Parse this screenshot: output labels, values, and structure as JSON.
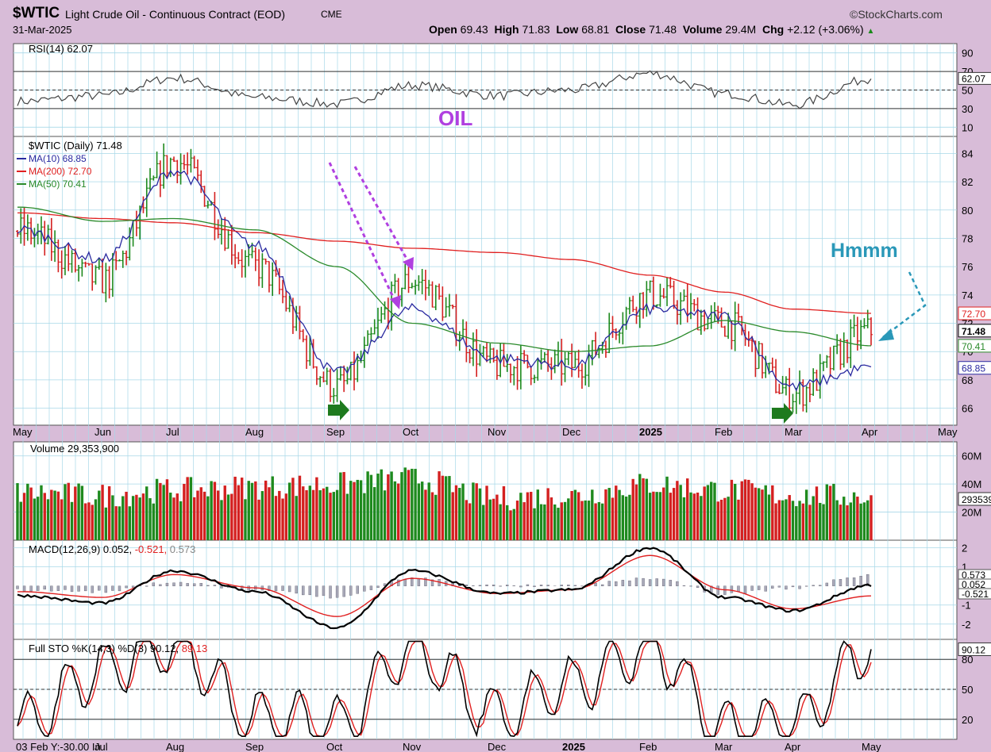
{
  "header": {
    "symbol": "$WTIC",
    "name": "Light Crude Oil - Continuous Contract (EOD)",
    "exchange": "CME",
    "watermark": "©StockCharts.com",
    "date": "31-Mar-2025",
    "open_label": "Open",
    "open": "69.43",
    "high_label": "High",
    "high": "71.83",
    "low_label": "Low",
    "low": "68.81",
    "close_label": "Close",
    "close": "71.48",
    "volume_label": "Volume",
    "volume": "29.4M",
    "chg_label": "Chg",
    "chg": "+2.12 (+3.06%)"
  },
  "colors": {
    "background": "#d8bcd8",
    "panel": "#ffffff",
    "grid": "#a8d8e8",
    "up": "#1e8a1e",
    "down": "#d42020",
    "ma10": "#2a2aa0",
    "ma200": "#e02020",
    "ma50": "#2a8a2a",
    "annotation_purple": "#b040e0",
    "annotation_teal": "#2a98b8"
  },
  "chart_data": [
    {
      "type": "line",
      "panel": "RSI",
      "legend": "RSI(14) 62.07",
      "y_ticks": [
        "90",
        "70",
        "50",
        "30",
        "10"
      ],
      "ylim": [
        0,
        100
      ],
      "last_value_label": "62.07",
      "series": [
        {
          "name": "RSI(14)",
          "x": [
            "May",
            "Jun",
            "Jul",
            "Aug",
            "Sep",
            "Oct",
            "Nov",
            "Dec",
            "2025",
            "Feb",
            "Mar",
            "Apr"
          ],
          "values": [
            38,
            44,
            63,
            42,
            35,
            55,
            44,
            50,
            68,
            46,
            34,
            62.07
          ]
        }
      ]
    },
    {
      "type": "ohlc",
      "panel": "Price",
      "legend": [
        "$WTIC (Daily) 71.48",
        "MA(10) 68.85",
        "MA(200) 72.70",
        "MA(50) 70.41"
      ],
      "y_ticks": [
        "84",
        "82",
        "80",
        "78",
        "76",
        "74",
        "72",
        "70",
        "68",
        "66"
      ],
      "ylim": [
        64.8,
        85.2
      ],
      "value_tags": [
        "72.70",
        "71.48",
        "70.41",
        "68.85"
      ],
      "x_labels": [
        "May",
        "Jun",
        "Jul",
        "Aug",
        "Sep",
        "Oct",
        "Nov",
        "Dec",
        "2025",
        "Feb",
        "Mar",
        "Apr",
        "May"
      ],
      "annotations": [
        "OIL",
        "Hmmm"
      ],
      "close_points": [
        {
          "x": "May",
          "y": 78.5
        },
        {
          "x": "Jun",
          "y": 75.0
        },
        {
          "x": "Jul",
          "y": 83.5
        },
        {
          "x": "Aug",
          "y": 76.0
        },
        {
          "x": "Sep",
          "y": 67.5
        },
        {
          "x": "Oct",
          "y": 75.0
        },
        {
          "x": "Nov",
          "y": 69.0
        },
        {
          "x": "Dec",
          "y": 69.0
        },
        {
          "x": "2025",
          "y": 74.0
        },
        {
          "x": "Feb",
          "y": 72.0
        },
        {
          "x": "Mar",
          "y": 67.0
        },
        {
          "x": "Apr",
          "y": 71.48
        }
      ],
      "series": [
        {
          "name": "MA(10)",
          "values": [
            78.6,
            76.5,
            82.8,
            77.5,
            68.5,
            73.0,
            69.5,
            69.0,
            73.0,
            72.5,
            67.5,
            68.85
          ]
        },
        {
          "name": "MA(200)",
          "values": [
            79.8,
            79.4,
            79.1,
            78.4,
            77.8,
            77.3,
            77.0,
            76.5,
            75.4,
            74.2,
            73.0,
            72.7
          ]
        },
        {
          "name": "MA(50)",
          "values": [
            80.2,
            79.2,
            79.4,
            78.6,
            76.0,
            72.0,
            70.6,
            70.0,
            70.4,
            72.2,
            71.4,
            70.41
          ]
        }
      ]
    },
    {
      "type": "bar",
      "panel": "Volume",
      "legend": "Volume 29,353,900",
      "y_ticks": [
        "60M",
        "40M",
        "20M"
      ],
      "ylim": [
        0,
        70
      ],
      "last_value_label": "29353900",
      "series": [
        {
          "name": "Volume",
          "x": [
            "May",
            "Jun",
            "Jul",
            "Aug",
            "Sep",
            "Oct",
            "Nov",
            "Dec",
            "2025",
            "Feb",
            "Mar",
            "Apr"
          ],
          "values": [
            32,
            30,
            34,
            36,
            38,
            42,
            28,
            30,
            38,
            34,
            30,
            29.35
          ]
        }
      ]
    },
    {
      "type": "line",
      "panel": "MACD",
      "legend": {
        "label": "MACD(12,26,9)",
        "macd": "0.052",
        "signal": "-0.521",
        "hist": "0.573"
      },
      "y_ticks": [
        "2",
        "1",
        "-1",
        "-2"
      ],
      "value_tags": [
        "0.573",
        "0.052",
        "-0.521"
      ],
      "ylim": [
        -2.8,
        2.4
      ],
      "series": [
        {
          "name": "MACD",
          "x": [
            "May",
            "Jun",
            "Jul",
            "Aug",
            "Sep",
            "Oct",
            "Nov",
            "Dec",
            "2025",
            "Feb",
            "Mar",
            "Apr"
          ],
          "values": [
            -0.5,
            -0.9,
            0.8,
            -0.3,
            -2.2,
            0.8,
            -0.4,
            -0.2,
            2.0,
            -0.6,
            -1.3,
            0.052
          ]
        },
        {
          "name": "Signal",
          "values": [
            -0.3,
            -0.6,
            0.6,
            -0.1,
            -1.6,
            0.4,
            -0.4,
            -0.2,
            1.6,
            -0.2,
            -1.2,
            -0.521
          ]
        }
      ]
    },
    {
      "type": "line",
      "panel": "Full STO",
      "legend": {
        "label": "Full STO %K(14,3) %D(3)",
        "k": "90.12",
        "d": "89.13"
      },
      "y_ticks": [
        "80",
        "50",
        "20"
      ],
      "value_tag": "90.12",
      "ylim": [
        0,
        100
      ],
      "x_labels": [
        "03 Feb Y:-30.00 In",
        "Jul",
        "Aug",
        "Sep",
        "Oct",
        "Nov",
        "Dec",
        "2025",
        "Feb",
        "Mar",
        "Apr",
        "May"
      ],
      "series": [
        {
          "name": "%K",
          "x": [
            "May",
            "Jun",
            "Jul",
            "Aug",
            "Sep",
            "Oct",
            "Nov",
            "Dec",
            "2025",
            "Feb",
            "Mar",
            "Apr"
          ],
          "values": [
            15,
            70,
            95,
            20,
            15,
            90,
            25,
            55,
            92,
            12,
            18,
            90.12
          ]
        },
        {
          "name": "%D",
          "values": [
            20,
            62,
            92,
            25,
            18,
            85,
            30,
            52,
            90,
            15,
            18,
            89.13
          ]
        }
      ]
    }
  ]
}
